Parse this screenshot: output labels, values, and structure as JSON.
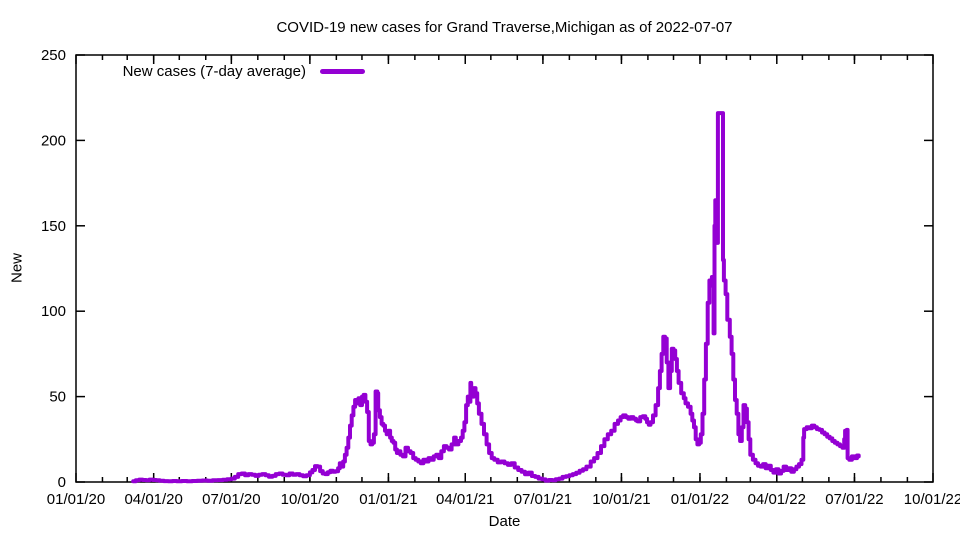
{
  "page": {
    "background": "#ffffff"
  },
  "colors": {
    "line": "#9400d3",
    "frame": "#000000",
    "text": "#000000"
  },
  "chart_data": {
    "type": "line",
    "style": "steps",
    "title": "COVID-19 new cases for Grand Traverse,Michigan as of 2022-07-07",
    "xlabel": "Date",
    "ylabel": "New",
    "legend_position": "top-left-inside",
    "grid": false,
    "x_epoch": "2020-01-01",
    "xlim_days": [
      0,
      1004
    ],
    "ylim": [
      0,
      250
    ],
    "y_ticks": [
      0,
      50,
      100,
      150,
      200,
      250
    ],
    "x_ticks": [
      {
        "day": 0,
        "label": "01/01/20"
      },
      {
        "day": 91,
        "label": "04/01/20"
      },
      {
        "day": 182,
        "label": "07/01/20"
      },
      {
        "day": 274,
        "label": "10/01/20"
      },
      {
        "day": 366,
        "label": "01/01/21"
      },
      {
        "day": 456,
        "label": "04/01/21"
      },
      {
        "day": 547,
        "label": "07/01/21"
      },
      {
        "day": 639,
        "label": "10/01/21"
      },
      {
        "day": 731,
        "label": "01/01/22"
      },
      {
        "day": 821,
        "label": "04/01/22"
      },
      {
        "day": 912,
        "label": "07/01/22"
      },
      {
        "day": 1004,
        "label": "10/01/22"
      }
    ],
    "minor_ticks": "monthly",
    "series": [
      {
        "name": "New cases (7-day average)",
        "color": "#9400d3",
        "points_day_value": [
          [
            67,
            0.4
          ],
          [
            70,
            1
          ],
          [
            74,
            1.4
          ],
          [
            78,
            1.2
          ],
          [
            82,
            1
          ],
          [
            86,
            1.4
          ],
          [
            90,
            1.2
          ],
          [
            94,
            1
          ],
          [
            98,
            0.7
          ],
          [
            103,
            0.5
          ],
          [
            108,
            0.4
          ],
          [
            113,
            0.6
          ],
          [
            118,
            0.4
          ],
          [
            124,
            0.6
          ],
          [
            130,
            0.4
          ],
          [
            136,
            0.6
          ],
          [
            142,
            0.7
          ],
          [
            148,
            0.9
          ],
          [
            154,
            0.7
          ],
          [
            160,
            1
          ],
          [
            166,
            1.1
          ],
          [
            172,
            1.3
          ],
          [
            177,
            1.6
          ],
          [
            182,
            2
          ],
          [
            186,
            3
          ],
          [
            190,
            4.6
          ],
          [
            194,
            5
          ],
          [
            198,
            4
          ],
          [
            202,
            4.6
          ],
          [
            206,
            4.3
          ],
          [
            210,
            3.6
          ],
          [
            214,
            4.3
          ],
          [
            218,
            4.6
          ],
          [
            222,
            4
          ],
          [
            226,
            3.1
          ],
          [
            230,
            3.6
          ],
          [
            234,
            4.6
          ],
          [
            238,
            5
          ],
          [
            242,
            4.3
          ],
          [
            246,
            4
          ],
          [
            250,
            5
          ],
          [
            254,
            4.3
          ],
          [
            258,
            4.6
          ],
          [
            262,
            4
          ],
          [
            266,
            3.4
          ],
          [
            270,
            4
          ],
          [
            274,
            5.6
          ],
          [
            277,
            7
          ],
          [
            280,
            9.3
          ],
          [
            283,
            9
          ],
          [
            286,
            6.4
          ],
          [
            289,
            5
          ],
          [
            292,
            4.6
          ],
          [
            295,
            5.7
          ],
          [
            298,
            6.6
          ],
          [
            301,
            6
          ],
          [
            304,
            6.3
          ],
          [
            307,
            8
          ],
          [
            309,
            11
          ],
          [
            311,
            9
          ],
          [
            313,
            12
          ],
          [
            315,
            16
          ],
          [
            317,
            20
          ],
          [
            319,
            26
          ],
          [
            321,
            33
          ],
          [
            323,
            39
          ],
          [
            325,
            44
          ],
          [
            327,
            48
          ],
          [
            329,
            46
          ],
          [
            331,
            49
          ],
          [
            333,
            45
          ],
          [
            335,
            50
          ],
          [
            337,
            51
          ],
          [
            339,
            47
          ],
          [
            341,
            41
          ],
          [
            343,
            24
          ],
          [
            345,
            22
          ],
          [
            347,
            23
          ],
          [
            349,
            28
          ],
          [
            351,
            53
          ],
          [
            353,
            52
          ],
          [
            354,
            42
          ],
          [
            356,
            38
          ],
          [
            358,
            34
          ],
          [
            360,
            33
          ],
          [
            362,
            30
          ],
          [
            364,
            28
          ],
          [
            366,
            30
          ],
          [
            368,
            26
          ],
          [
            370,
            24
          ],
          [
            372,
            23
          ],
          [
            374,
            19
          ],
          [
            376,
            17
          ],
          [
            378,
            18
          ],
          [
            380,
            16
          ],
          [
            383,
            15
          ],
          [
            386,
            20
          ],
          [
            389,
            18
          ],
          [
            392,
            17
          ],
          [
            395,
            14
          ],
          [
            398,
            13
          ],
          [
            401,
            12
          ],
          [
            404,
            11
          ],
          [
            407,
            13
          ],
          [
            410,
            12
          ],
          [
            413,
            14
          ],
          [
            416,
            13
          ],
          [
            419,
            15
          ],
          [
            422,
            16
          ],
          [
            425,
            14
          ],
          [
            428,
            18
          ],
          [
            431,
            21
          ],
          [
            434,
            20
          ],
          [
            437,
            19
          ],
          [
            440,
            22
          ],
          [
            443,
            26
          ],
          [
            445,
            22
          ],
          [
            448,
            24
          ],
          [
            451,
            26
          ],
          [
            453,
            30
          ],
          [
            455,
            35
          ],
          [
            457,
            45
          ],
          [
            459,
            50
          ],
          [
            460,
            47
          ],
          [
            462,
            58
          ],
          [
            463,
            55
          ],
          [
            464,
            50
          ],
          [
            466,
            55
          ],
          [
            468,
            52
          ],
          [
            470,
            46
          ],
          [
            472,
            40
          ],
          [
            475,
            34
          ],
          [
            478,
            28
          ],
          [
            481,
            22
          ],
          [
            484,
            17
          ],
          [
            487,
            14
          ],
          [
            490,
            13
          ],
          [
            494,
            11.5
          ],
          [
            498,
            12
          ],
          [
            502,
            11
          ],
          [
            506,
            10
          ],
          [
            510,
            11
          ],
          [
            514,
            8.5
          ],
          [
            518,
            7
          ],
          [
            522,
            6
          ],
          [
            526,
            4.5
          ],
          [
            530,
            5.5
          ],
          [
            534,
            3.5
          ],
          [
            538,
            3
          ],
          [
            542,
            2
          ],
          [
            546,
            1.5
          ],
          [
            550,
            0.8
          ],
          [
            554,
            1.2
          ],
          [
            558,
            1
          ],
          [
            562,
            1.6
          ],
          [
            566,
            2
          ],
          [
            570,
            3
          ],
          [
            574,
            3.4
          ],
          [
            578,
            4
          ],
          [
            582,
            4.6
          ],
          [
            586,
            5.4
          ],
          [
            590,
            6.6
          ],
          [
            594,
            7.5
          ],
          [
            598,
            9
          ],
          [
            603,
            12
          ],
          [
            607,
            14
          ],
          [
            611,
            17
          ],
          [
            615,
            21
          ],
          [
            619,
            25
          ],
          [
            623,
            28
          ],
          [
            627,
            30
          ],
          [
            631,
            34
          ],
          [
            635,
            36
          ],
          [
            638,
            38
          ],
          [
            641,
            39
          ],
          [
            644,
            38
          ],
          [
            647,
            37
          ],
          [
            650,
            38
          ],
          [
            653,
            37
          ],
          [
            656,
            36
          ],
          [
            658,
            35.5
          ],
          [
            661,
            38
          ],
          [
            664,
            38.5
          ],
          [
            667,
            37
          ],
          [
            669,
            35
          ],
          [
            671,
            33.5
          ],
          [
            673,
            35
          ],
          [
            676,
            39
          ],
          [
            679,
            45
          ],
          [
            682,
            55
          ],
          [
            684,
            65
          ],
          [
            686,
            75
          ],
          [
            688,
            85
          ],
          [
            690,
            84
          ],
          [
            692,
            70
          ],
          [
            694,
            55
          ],
          [
            696,
            65
          ],
          [
            698,
            78
          ],
          [
            700,
            77
          ],
          [
            702,
            72
          ],
          [
            704,
            65
          ],
          [
            706,
            58
          ],
          [
            709,
            52
          ],
          [
            712,
            49
          ],
          [
            714,
            46
          ],
          [
            717,
            44
          ],
          [
            720,
            40
          ],
          [
            722,
            36
          ],
          [
            724,
            32
          ],
          [
            726,
            25
          ],
          [
            728,
            22
          ],
          [
            730,
            23
          ],
          [
            732,
            28
          ],
          [
            734,
            40
          ],
          [
            736,
            60
          ],
          [
            738,
            81
          ],
          [
            740,
            105
          ],
          [
            742,
            118
          ],
          [
            744,
            115
          ],
          [
            745,
            120
          ],
          [
            747,
            87
          ],
          [
            748,
            150
          ],
          [
            749,
            165
          ],
          [
            750,
            140
          ],
          [
            752,
            216
          ],
          [
            756,
            216
          ],
          [
            758,
            130
          ],
          [
            759,
            118
          ],
          [
            761,
            110
          ],
          [
            763,
            95
          ],
          [
            766,
            85
          ],
          [
            768,
            75
          ],
          [
            770,
            60
          ],
          [
            772,
            48
          ],
          [
            774,
            40
          ],
          [
            776,
            28
          ],
          [
            778,
            24
          ],
          [
            780,
            32
          ],
          [
            782,
            45
          ],
          [
            784,
            43
          ],
          [
            786,
            35
          ],
          [
            788,
            25
          ],
          [
            790,
            16
          ],
          [
            793,
            13
          ],
          [
            796,
            11
          ],
          [
            799,
            9.5
          ],
          [
            802,
            9
          ],
          [
            805,
            10.5
          ],
          [
            808,
            8
          ],
          [
            811,
            9.5
          ],
          [
            814,
            7
          ],
          [
            817,
            5.5
          ],
          [
            820,
            7.5
          ],
          [
            823,
            5
          ],
          [
            826,
            6.5
          ],
          [
            829,
            9
          ],
          [
            832,
            7
          ],
          [
            835,
            8
          ],
          [
            838,
            6
          ],
          [
            841,
            7.5
          ],
          [
            844,
            9
          ],
          [
            847,
            10.5
          ],
          [
            850,
            13
          ],
          [
            852,
            26
          ],
          [
            853,
            31
          ],
          [
            856,
            32
          ],
          [
            859,
            31.5
          ],
          [
            862,
            33
          ],
          [
            865,
            32
          ],
          [
            868,
            31
          ],
          [
            871,
            30.5
          ],
          [
            874,
            29
          ],
          [
            877,
            28
          ],
          [
            880,
            26.5
          ],
          [
            883,
            25.5
          ],
          [
            886,
            24
          ],
          [
            889,
            23
          ],
          [
            892,
            22
          ],
          [
            895,
            21
          ],
          [
            898,
            20
          ],
          [
            900,
            25
          ],
          [
            901,
            30
          ],
          [
            903,
            30.5
          ],
          [
            904,
            14
          ],
          [
            906,
            13
          ],
          [
            909,
            15
          ],
          [
            912,
            14
          ],
          [
            915,
            15.5
          ],
          [
            917,
            15
          ]
        ]
      }
    ]
  }
}
